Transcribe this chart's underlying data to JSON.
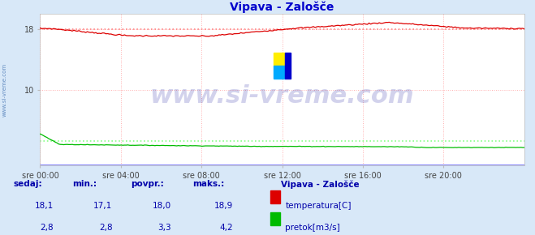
{
  "title": "Vipava - Zalošče",
  "bg_color": "#d8e8f8",
  "plot_bg_color": "#ffffff",
  "grid_color": "#ffb0b0",
  "grid_style": ":",
  "x_labels": [
    "sre 00:00",
    "sre 04:00",
    "sre 08:00",
    "sre 12:00",
    "sre 16:00",
    "sre 20:00"
  ],
  "x_ticks_norm": [
    0,
    0.167,
    0.333,
    0.5,
    0.667,
    0.833
  ],
  "y_ticks": [
    10,
    18
  ],
  "y_min": 0,
  "y_max": 20,
  "title_color": "#0000cc",
  "title_fontsize": 10,
  "watermark_text": "www.si-vreme.com",
  "watermark_color": "#3333aa",
  "watermark_alpha": 0.22,
  "watermark_fontsize": 22,
  "side_label": "www.si-vreme.com",
  "temp_color": "#dd0000",
  "flow_color": "#00bb00",
  "blue_line_color": "#8888ff",
  "avg_temp_color": "#ff8888",
  "avg_flow_color": "#88ff88",
  "avg_temp_value": 18.0,
  "avg_flow_value": 3.3,
  "footer_bg": "#d8e8f8",
  "footer_text_color": "#0000aa",
  "col_headers": [
    "sedaj:",
    "min.:",
    "povpr.:",
    "maks.:"
  ],
  "station_name": "Vipava - Zalošče",
  "sedaj_temp": "18,1",
  "min_temp": "17,1",
  "povpr_temp": "18,0",
  "maks_temp": "18,9",
  "sedaj_flow": "2,8",
  "min_flow": "2,8",
  "povpr_flow": "3,3",
  "maks_flow": "4,2",
  "legend_temp": "temperatura[C]",
  "legend_flow": "pretok[m3/s]",
  "logo_yellow": "#ffee00",
  "logo_cyan": "#00aaff",
  "logo_blue": "#0000cc"
}
